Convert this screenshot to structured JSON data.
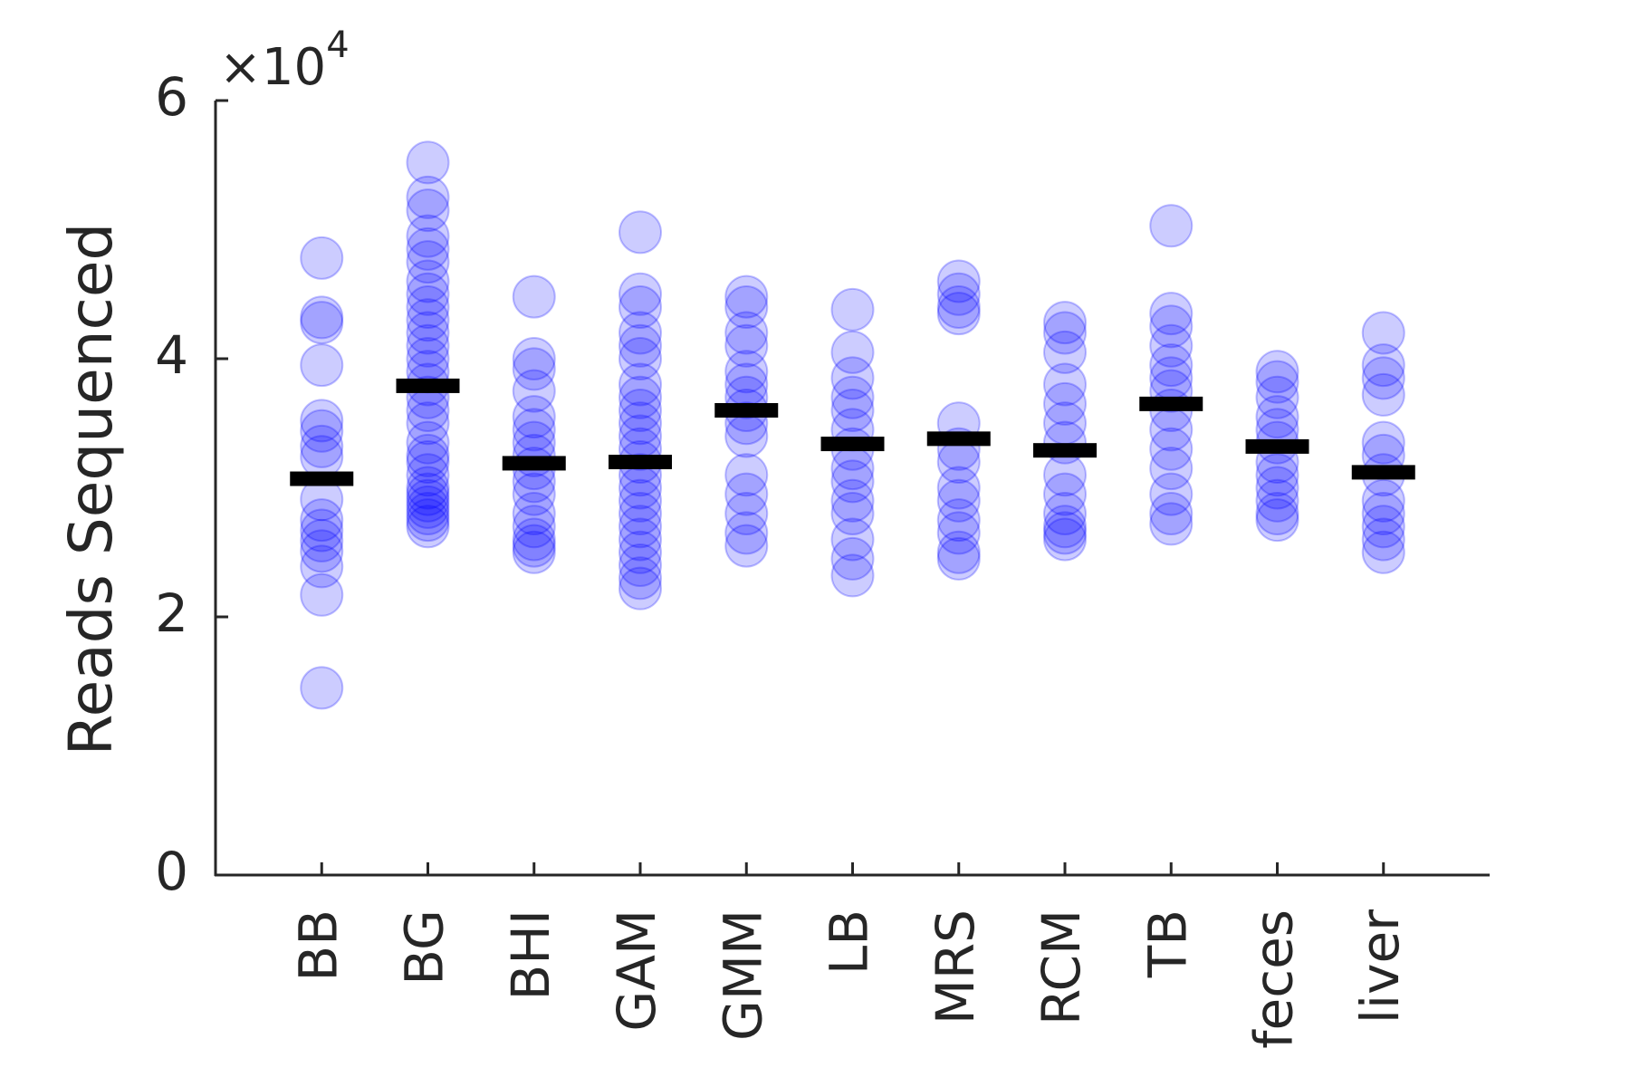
{
  "chart_data": {
    "type": "strip",
    "y_label": "Reads Sequenced",
    "y_multiplier": {
      "base": "×10",
      "exponent": "4"
    },
    "categories": [
      "BB",
      "BG",
      "BHI",
      "GAM",
      "GMM",
      "LB",
      "MRS",
      "RCM",
      "TB",
      "feces",
      "liver"
    ],
    "points": [
      [
        4.78,
        4.32,
        4.28,
        3.95,
        3.52,
        3.44,
        3.32,
        3.24,
        2.91,
        2.75,
        2.67,
        2.59,
        2.51,
        2.39,
        2.17,
        1.45
      ],
      [
        5.52,
        5.25,
        5.15,
        4.95,
        4.85,
        4.75,
        4.6,
        4.5,
        4.4,
        4.3,
        4.2,
        4.1,
        4.0,
        3.9,
        3.8,
        3.7,
        3.6,
        3.5,
        3.35,
        3.25,
        3.2,
        3.1,
        3.0,
        2.95,
        2.9,
        2.85,
        2.8,
        2.75,
        2.7
      ],
      [
        4.48,
        4.0,
        3.92,
        3.75,
        3.55,
        3.45,
        3.35,
        3.25,
        3.15,
        3.05,
        2.95,
        2.8,
        2.7,
        2.6,
        2.55,
        2.5
      ],
      [
        4.98,
        4.5,
        4.4,
        4.2,
        4.1,
        4.0,
        3.8,
        3.7,
        3.6,
        3.5,
        3.4,
        3.3,
        3.2,
        3.1,
        3.0,
        2.9,
        2.8,
        2.7,
        2.6,
        2.5,
        2.4,
        2.3,
        2.22
      ],
      [
        4.48,
        4.4,
        4.2,
        4.1,
        3.9,
        3.8,
        3.7,
        3.6,
        3.5,
        3.4,
        3.1,
        2.95,
        2.8,
        2.65,
        2.55
      ],
      [
        4.38,
        4.05,
        3.85,
        3.7,
        3.6,
        3.45,
        3.3,
        3.15,
        3.05,
        2.9,
        2.8,
        2.6,
        2.45,
        2.32
      ],
      [
        4.6,
        4.5,
        4.4,
        4.35,
        3.5,
        3.3,
        3.2,
        3.0,
        2.9,
        2.75,
        2.65,
        2.5,
        2.45
      ],
      [
        4.28,
        4.2,
        4.05,
        3.8,
        3.65,
        3.5,
        3.35,
        3.1,
        2.95,
        2.8,
        2.7,
        2.65,
        2.6
      ],
      [
        5.03,
        4.35,
        4.25,
        4.1,
        3.95,
        3.85,
        3.75,
        3.6,
        3.45,
        3.3,
        3.15,
        2.95,
        2.8,
        2.72
      ],
      [
        3.9,
        3.82,
        3.7,
        3.55,
        3.45,
        3.35,
        3.2,
        3.1,
        3.0,
        2.9,
        2.8,
        2.75
      ],
      [
        4.2,
        3.95,
        3.85,
        3.72,
        3.35,
        3.25,
        3.1,
        2.9,
        2.8,
        2.7,
        2.6,
        2.5
      ]
    ],
    "means": [
      3.07,
      3.79,
      3.19,
      3.2,
      3.6,
      3.34,
      3.38,
      3.29,
      3.65,
      3.32,
      3.12
    ],
    "point_color": "#0000ff",
    "mean_color": "#000000",
    "ylim": [
      0,
      6
    ],
    "yticks": [
      0,
      2,
      4,
      6
    ]
  }
}
